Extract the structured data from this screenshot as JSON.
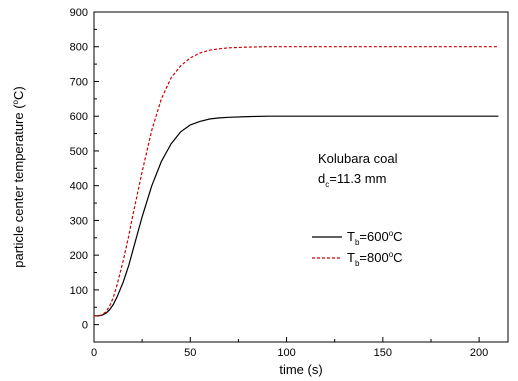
{
  "chart_data": {
    "type": "line",
    "xlabel": "time (s)",
    "ylabel_parts": {
      "main": "particle center temperature (",
      "sup": "o",
      "end": "C)"
    },
    "xlim": [
      0,
      215
    ],
    "ylim": [
      -50,
      900
    ],
    "xticks": [
      0,
      50,
      100,
      150,
      200
    ],
    "yticks": [
      0,
      100,
      200,
      300,
      400,
      500,
      600,
      700,
      800,
      900
    ],
    "annotation": {
      "line1": "Kolubara coal",
      "line2_main": "d",
      "line2_sub": "c",
      "line2_rest": "=11.3 mm"
    },
    "legend_position": "right",
    "series": [
      {
        "name_parts": {
          "main": "T",
          "sub": "b",
          "mid": "=600",
          "sup": "o",
          "end": "C"
        },
        "color": "#000000",
        "dash": "solid",
        "x": [
          0,
          2,
          4,
          6,
          8,
          10,
          12,
          15,
          18,
          20,
          25,
          30,
          35,
          40,
          45,
          50,
          55,
          60,
          65,
          70,
          80,
          90,
          100,
          120,
          150,
          180,
          210
        ],
        "y": [
          25,
          25,
          27,
          32,
          42,
          58,
          80,
          120,
          170,
          210,
          310,
          400,
          470,
          520,
          555,
          575,
          585,
          592,
          595,
          597,
          599,
          600,
          600,
          600,
          600,
          600,
          600
        ]
      },
      {
        "name_parts": {
          "main": "T",
          "sub": "b",
          "mid": "=800",
          "sup": "o",
          "end": "C"
        },
        "color": "#cc0000",
        "dash": "dashed",
        "x": [
          0,
          2,
          4,
          6,
          8,
          10,
          12,
          15,
          18,
          20,
          25,
          30,
          35,
          40,
          45,
          50,
          55,
          60,
          65,
          70,
          80,
          90,
          100,
          120,
          150,
          180,
          210
        ],
        "y": [
          25,
          25,
          28,
          36,
          52,
          78,
          115,
          180,
          255,
          310,
          440,
          560,
          650,
          710,
          745,
          768,
          782,
          790,
          794,
          797,
          799,
          800,
          800,
          800,
          800,
          800,
          800
        ]
      }
    ]
  }
}
